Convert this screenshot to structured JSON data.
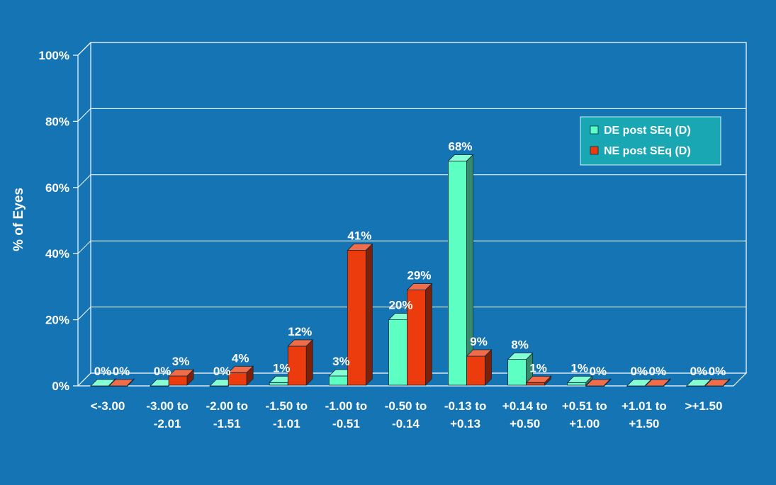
{
  "chart_data": {
    "type": "bar",
    "ylabel": "% of Eyes",
    "ylim": [
      0,
      100
    ],
    "yticks": [
      0,
      20,
      40,
      60,
      80,
      100
    ],
    "ytick_labels": [
      "0%",
      "20%",
      "40%",
      "60%",
      "80%",
      "100%"
    ],
    "categories": [
      [
        "<-3.00"
      ],
      [
        "-3.00 to",
        "-2.01"
      ],
      [
        "-2.00 to",
        "-1.51"
      ],
      [
        "-1.50 to",
        "-1.01"
      ],
      [
        "-1.00 to",
        "-0.51"
      ],
      [
        "-0.50 to",
        "-0.14"
      ],
      [
        "-0.13 to",
        "+0.13"
      ],
      [
        "+0.14 to",
        "+0.50"
      ],
      [
        "+0.51 to",
        "+1.00"
      ],
      [
        "+1.01 to",
        "+1.50"
      ],
      [
        ">+1.50"
      ]
    ],
    "series": [
      {
        "name": "DE post SEq (D)",
        "color": "#5effc3",
        "values": [
          0,
          0,
          0,
          1,
          3,
          20,
          68,
          8,
          1,
          0,
          0
        ],
        "labels": [
          "0%",
          "0%",
          "0%",
          "1%",
          "3%",
          "20%",
          "68%",
          "8%",
          "1%",
          "0%",
          "0%"
        ]
      },
      {
        "name": "NE post SEq (D)",
        "color": "#ec3b0c",
        "values": [
          0,
          3,
          4,
          12,
          41,
          29,
          9,
          1,
          0,
          0,
          0
        ],
        "labels": [
          "0%",
          "3%",
          "4%",
          "12%",
          "41%",
          "29%",
          "9%",
          "1%",
          "0%",
          "0%",
          "0%"
        ]
      }
    ],
    "grid": true,
    "legend_position": "top-right",
    "style": "3d"
  }
}
